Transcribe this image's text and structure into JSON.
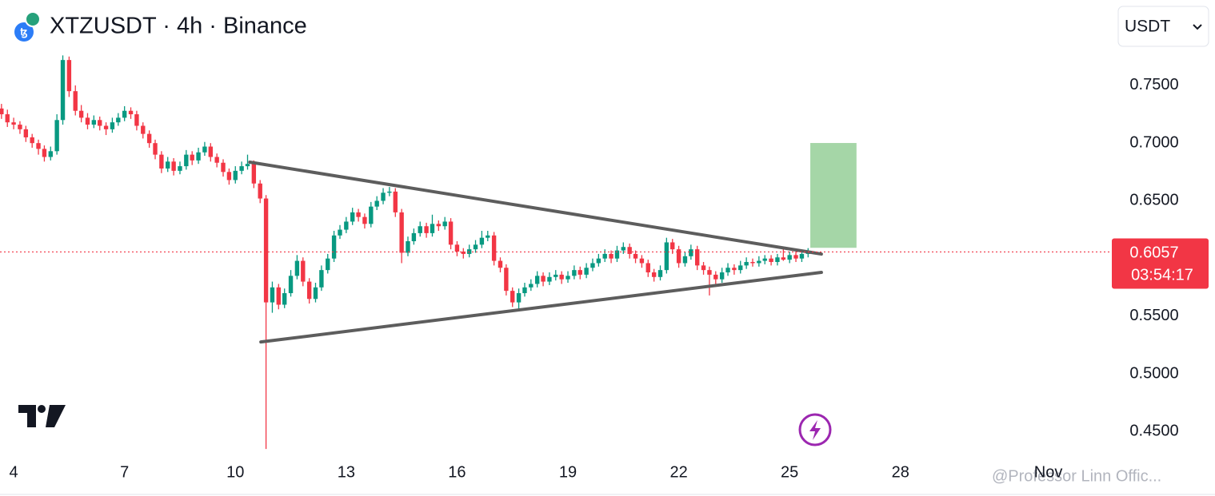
{
  "chart_data": {
    "type": "candlestick",
    "title": "XTZUSDT · 4h · Binance",
    "currency": "USDT",
    "up_color": "#089981",
    "down_color": "#f23645",
    "last_price": 0.6057,
    "countdown": "03:54:17",
    "watermark": "@Professor Linn Offic...",
    "xlim": [
      3.63,
      33.72
    ],
    "ylim": [
      0.433,
      0.824
    ],
    "xticks": [
      4,
      7,
      10,
      13,
      16,
      19,
      22,
      25,
      28,
      {
        "value": 32,
        "label": "Nov"
      }
    ],
    "yticks": [
      {
        "value": 0.75,
        "label": "0.7500"
      },
      {
        "value": 0.7,
        "label": "0.7000"
      },
      {
        "value": 0.65,
        "label": "0.6500"
      },
      {
        "value": 0.55,
        "label": "0.5500"
      },
      {
        "value": 0.5,
        "label": "0.5000"
      },
      {
        "value": 0.45,
        "label": "0.4500"
      }
    ],
    "trendlines": [
      {
        "x": [
          10.39,
          25.86
        ],
        "y": [
          0.6835,
          0.6039
        ],
        "color": "#5d5d5d"
      },
      {
        "x": [
          10.69,
          25.86
        ],
        "y": [
          0.5277,
          0.588
        ],
        "color": "#5d5d5d"
      }
    ],
    "target_box": {
      "x": [
        25.56,
        26.81
      ],
      "y": [
        0.6093,
        0.7001
      ],
      "color": "#a5d6a7"
    },
    "candles": [
      [
        3.67,
        0.73,
        0.734,
        0.721,
        0.725
      ],
      [
        3.83,
        0.725,
        0.729,
        0.714,
        0.718
      ],
      [
        4,
        0.718,
        0.722,
        0.712,
        0.716
      ],
      [
        4.17,
        0.716,
        0.719,
        0.708,
        0.712
      ],
      [
        4.33,
        0.712,
        0.715,
        0.701,
        0.705
      ],
      [
        4.5,
        0.705,
        0.708,
        0.696,
        0.7
      ],
      [
        4.67,
        0.7,
        0.703,
        0.69,
        0.695
      ],
      [
        4.83,
        0.695,
        0.698,
        0.684,
        0.688
      ],
      [
        5,
        0.688,
        0.697,
        0.685,
        0.693
      ],
      [
        5.17,
        0.693,
        0.725,
        0.69,
        0.72
      ],
      [
        5.33,
        0.72,
        0.776,
        0.716,
        0.772
      ],
      [
        5.5,
        0.772,
        0.775,
        0.74,
        0.745
      ],
      [
        5.67,
        0.745,
        0.75,
        0.724,
        0.728
      ],
      [
        5.83,
        0.728,
        0.733,
        0.718,
        0.722
      ],
      [
        6,
        0.722,
        0.726,
        0.712,
        0.716
      ],
      [
        6.17,
        0.716,
        0.724,
        0.713,
        0.72
      ],
      [
        6.33,
        0.72,
        0.723,
        0.711,
        0.715
      ],
      [
        6.5,
        0.715,
        0.718,
        0.707,
        0.712
      ],
      [
        6.67,
        0.712,
        0.722,
        0.709,
        0.718
      ],
      [
        6.83,
        0.718,
        0.726,
        0.715,
        0.722
      ],
      [
        7,
        0.722,
        0.732,
        0.719,
        0.728
      ],
      [
        7.17,
        0.728,
        0.731,
        0.721,
        0.725
      ],
      [
        7.33,
        0.725,
        0.728,
        0.711,
        0.715
      ],
      [
        7.5,
        0.715,
        0.718,
        0.704,
        0.708
      ],
      [
        7.67,
        0.708,
        0.711,
        0.696,
        0.7
      ],
      [
        7.83,
        0.7,
        0.703,
        0.686,
        0.69
      ],
      [
        8,
        0.69,
        0.693,
        0.674,
        0.678
      ],
      [
        8.17,
        0.678,
        0.688,
        0.675,
        0.684
      ],
      [
        8.33,
        0.684,
        0.687,
        0.672,
        0.676
      ],
      [
        8.5,
        0.676,
        0.684,
        0.673,
        0.68
      ],
      [
        8.67,
        0.68,
        0.694,
        0.677,
        0.69
      ],
      [
        8.83,
        0.69,
        0.693,
        0.681,
        0.685
      ],
      [
        9,
        0.685,
        0.696,
        0.682,
        0.692
      ],
      [
        9.17,
        0.692,
        0.701,
        0.689,
        0.697
      ],
      [
        9.33,
        0.697,
        0.7,
        0.684,
        0.688
      ],
      [
        9.5,
        0.688,
        0.691,
        0.679,
        0.683
      ],
      [
        9.67,
        0.683,
        0.686,
        0.671,
        0.675
      ],
      [
        9.83,
        0.675,
        0.678,
        0.664,
        0.668
      ],
      [
        10,
        0.668,
        0.68,
        0.665,
        0.676
      ],
      [
        10.17,
        0.676,
        0.684,
        0.673,
        0.68
      ],
      [
        10.33,
        0.68,
        0.69,
        0.677,
        0.682
      ],
      [
        10.5,
        0.682,
        0.685,
        0.661,
        0.665
      ],
      [
        10.67,
        0.665,
        0.668,
        0.648,
        0.652
      ],
      [
        10.83,
        0.652,
        0.655,
        0.435,
        0.562
      ],
      [
        11,
        0.562,
        0.58,
        0.553,
        0.575
      ],
      [
        11.17,
        0.575,
        0.578,
        0.556,
        0.56
      ],
      [
        11.33,
        0.56,
        0.574,
        0.557,
        0.57
      ],
      [
        11.5,
        0.57,
        0.59,
        0.567,
        0.585
      ],
      [
        11.67,
        0.585,
        0.603,
        0.582,
        0.598
      ],
      [
        11.83,
        0.598,
        0.601,
        0.576,
        0.58
      ],
      [
        12,
        0.58,
        0.583,
        0.561,
        0.565
      ],
      [
        12.17,
        0.565,
        0.579,
        0.562,
        0.575
      ],
      [
        12.33,
        0.575,
        0.594,
        0.572,
        0.59
      ],
      [
        12.5,
        0.59,
        0.604,
        0.587,
        0.6
      ],
      [
        12.67,
        0.6,
        0.624,
        0.597,
        0.62
      ],
      [
        12.83,
        0.62,
        0.629,
        0.617,
        0.625
      ],
      [
        13,
        0.625,
        0.636,
        0.622,
        0.632
      ],
      [
        13.17,
        0.632,
        0.644,
        0.629,
        0.64
      ],
      [
        13.33,
        0.64,
        0.643,
        0.632,
        0.636
      ],
      [
        13.5,
        0.636,
        0.639,
        0.626,
        0.63
      ],
      [
        13.67,
        0.63,
        0.649,
        0.627,
        0.645
      ],
      [
        13.83,
        0.645,
        0.654,
        0.642,
        0.65
      ],
      [
        14,
        0.65,
        0.661,
        0.647,
        0.657
      ],
      [
        14.17,
        0.657,
        0.662,
        0.654,
        0.658
      ],
      [
        14.33,
        0.658,
        0.661,
        0.636,
        0.64
      ],
      [
        14.5,
        0.64,
        0.643,
        0.596,
        0.605
      ],
      [
        14.67,
        0.605,
        0.619,
        0.602,
        0.615
      ],
      [
        14.83,
        0.615,
        0.626,
        0.612,
        0.622
      ],
      [
        15,
        0.622,
        0.632,
        0.619,
        0.628
      ],
      [
        15.17,
        0.628,
        0.631,
        0.618,
        0.622
      ],
      [
        15.33,
        0.622,
        0.638,
        0.619,
        0.63
      ],
      [
        15.5,
        0.63,
        0.633,
        0.624,
        0.628
      ],
      [
        15.67,
        0.628,
        0.636,
        0.625,
        0.632
      ],
      [
        15.83,
        0.632,
        0.635,
        0.608,
        0.612
      ],
      [
        16,
        0.612,
        0.615,
        0.602,
        0.606
      ],
      [
        16.17,
        0.606,
        0.609,
        0.6,
        0.604
      ],
      [
        16.33,
        0.604,
        0.612,
        0.601,
        0.608
      ],
      [
        16.5,
        0.608,
        0.616,
        0.605,
        0.612
      ],
      [
        16.67,
        0.612,
        0.624,
        0.609,
        0.618
      ],
      [
        16.83,
        0.618,
        0.624,
        0.615,
        0.62
      ],
      [
        17,
        0.62,
        0.623,
        0.594,
        0.598
      ],
      [
        17.17,
        0.598,
        0.601,
        0.588,
        0.592
      ],
      [
        17.33,
        0.592,
        0.595,
        0.568,
        0.572
      ],
      [
        17.5,
        0.572,
        0.575,
        0.558,
        0.562
      ],
      [
        17.67,
        0.562,
        0.574,
        0.556,
        0.57
      ],
      [
        17.83,
        0.57,
        0.579,
        0.567,
        0.575
      ],
      [
        18,
        0.575,
        0.582,
        0.572,
        0.578
      ],
      [
        18.17,
        0.578,
        0.589,
        0.575,
        0.585
      ],
      [
        18.33,
        0.585,
        0.588,
        0.576,
        0.58
      ],
      [
        18.5,
        0.58,
        0.588,
        0.577,
        0.584
      ],
      [
        18.67,
        0.584,
        0.59,
        0.581,
        0.586
      ],
      [
        18.83,
        0.586,
        0.589,
        0.578,
        0.582
      ],
      [
        19,
        0.582,
        0.589,
        0.579,
        0.585
      ],
      [
        19.17,
        0.585,
        0.594,
        0.582,
        0.59
      ],
      [
        19.33,
        0.59,
        0.593,
        0.582,
        0.586
      ],
      [
        19.5,
        0.586,
        0.596,
        0.583,
        0.592
      ],
      [
        19.67,
        0.592,
        0.6,
        0.589,
        0.596
      ],
      [
        19.83,
        0.596,
        0.604,
        0.593,
        0.6
      ],
      [
        20,
        0.6,
        0.608,
        0.597,
        0.604
      ],
      [
        20.17,
        0.604,
        0.607,
        0.596,
        0.6
      ],
      [
        20.33,
        0.6,
        0.611,
        0.597,
        0.607
      ],
      [
        20.5,
        0.607,
        0.614,
        0.604,
        0.61
      ],
      [
        20.67,
        0.61,
        0.613,
        0.6,
        0.604
      ],
      [
        20.83,
        0.604,
        0.607,
        0.596,
        0.6
      ],
      [
        21,
        0.6,
        0.603,
        0.592,
        0.596
      ],
      [
        21.17,
        0.596,
        0.599,
        0.584,
        0.588
      ],
      [
        21.33,
        0.588,
        0.591,
        0.58,
        0.584
      ],
      [
        21.5,
        0.584,
        0.594,
        0.581,
        0.59
      ],
      [
        21.67,
        0.59,
        0.618,
        0.587,
        0.614
      ],
      [
        21.83,
        0.614,
        0.617,
        0.604,
        0.608
      ],
      [
        22,
        0.608,
        0.611,
        0.592,
        0.596
      ],
      [
        22.17,
        0.596,
        0.606,
        0.593,
        0.602
      ],
      [
        22.33,
        0.602,
        0.612,
        0.599,
        0.608
      ],
      [
        22.5,
        0.608,
        0.611,
        0.59,
        0.594
      ],
      [
        22.67,
        0.594,
        0.597,
        0.586,
        0.59
      ],
      [
        22.83,
        0.59,
        0.593,
        0.568,
        0.586
      ],
      [
        23,
        0.586,
        0.589,
        0.578,
        0.582
      ],
      [
        23.17,
        0.582,
        0.592,
        0.579,
        0.588
      ],
      [
        23.33,
        0.588,
        0.596,
        0.585,
        0.592
      ],
      [
        23.5,
        0.592,
        0.595,
        0.586,
        0.59
      ],
      [
        23.67,
        0.59,
        0.598,
        0.587,
        0.594
      ],
      [
        23.83,
        0.594,
        0.601,
        0.591,
        0.597
      ],
      [
        24,
        0.597,
        0.6,
        0.593,
        0.596
      ],
      [
        24.17,
        0.596,
        0.602,
        0.593,
        0.598
      ],
      [
        24.33,
        0.598,
        0.603,
        0.595,
        0.6
      ],
      [
        24.5,
        0.6,
        0.603,
        0.594,
        0.597
      ],
      [
        24.67,
        0.597,
        0.604,
        0.594,
        0.601
      ],
      [
        24.83,
        0.601,
        0.61,
        0.598,
        0.599
      ],
      [
        25,
        0.599,
        0.606,
        0.596,
        0.603
      ],
      [
        25.17,
        0.603,
        0.606,
        0.597,
        0.6
      ],
      [
        25.33,
        0.6,
        0.607,
        0.597,
        0.604
      ],
      [
        25.5,
        0.604,
        0.609,
        0.601,
        0.6057
      ]
    ]
  }
}
